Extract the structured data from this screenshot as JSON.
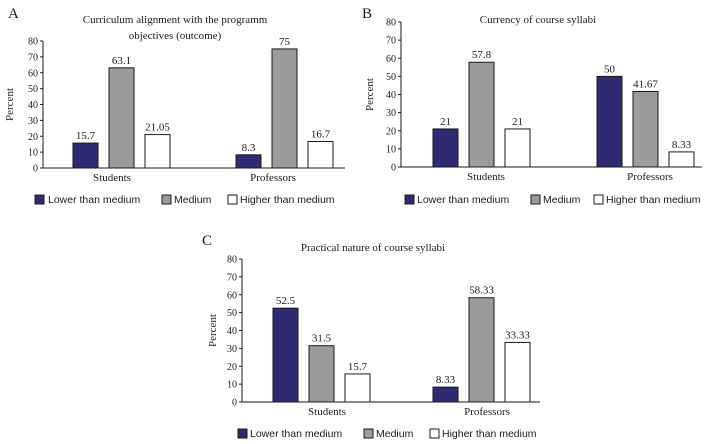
{
  "colors": {
    "lower": "#2e2a74",
    "medium": "#9b9b9b",
    "higher": "#ffffff",
    "axis": "#1a1a1a"
  },
  "chart_data": [
    {
      "panel_label": "A",
      "type": "bar",
      "title_lines": [
        "Curriculum alignment with the programm",
        "objectives (outcome)"
      ],
      "ylabel": "Percent",
      "xlabel": "",
      "ylim": [
        0,
        80
      ],
      "yticks": [
        0,
        10,
        20,
        30,
        40,
        50,
        60,
        70,
        80
      ],
      "categories": [
        "Students",
        "Professors"
      ],
      "series": [
        {
          "name": "Lower than medium",
          "key": "lower",
          "values": [
            15.7,
            8.3
          ],
          "labels": [
            "15.7",
            "8.3"
          ]
        },
        {
          "name": "Medium",
          "key": "medium",
          "values": [
            63.1,
            75
          ],
          "labels": [
            "63.1",
            "75"
          ]
        },
        {
          "name": "Higher than medium",
          "key": "higher",
          "values": [
            21.05,
            16.7
          ],
          "labels": [
            "21.05",
            "16.7"
          ]
        }
      ]
    },
    {
      "panel_label": "B",
      "type": "bar",
      "title_lines": [
        "Currency of course syllabi"
      ],
      "ylabel": "Percent",
      "xlabel": "",
      "ylim": [
        0,
        80
      ],
      "yticks": [
        0,
        10,
        20,
        30,
        40,
        50,
        60,
        70,
        80
      ],
      "categories": [
        "Students",
        "Professors"
      ],
      "series": [
        {
          "name": "Lower than medium",
          "key": "lower",
          "values": [
            21,
            50
          ],
          "labels": [
            "21",
            "50"
          ]
        },
        {
          "name": "Medium",
          "key": "medium",
          "values": [
            57.8,
            41.67
          ],
          "labels": [
            "57.8",
            "41.67"
          ]
        },
        {
          "name": "Higher than medium",
          "key": "higher",
          "values": [
            21,
            8.33
          ],
          "labels": [
            "21",
            "8.33"
          ]
        }
      ]
    },
    {
      "panel_label": "C",
      "type": "bar",
      "title_lines": [
        "Practical nature of course syllabi"
      ],
      "ylabel": "Percent",
      "xlabel": "",
      "ylim": [
        0,
        80
      ],
      "yticks": [
        0,
        10,
        20,
        30,
        40,
        50,
        60,
        70,
        80
      ],
      "categories": [
        "Students",
        "Professors"
      ],
      "series": [
        {
          "name": "Lower than medium",
          "key": "lower",
          "values": [
            52.5,
            8.33
          ],
          "labels": [
            "52.5",
            "8.33"
          ]
        },
        {
          "name": "Medium",
          "key": "medium",
          "values": [
            31.5,
            58.33
          ],
          "labels": [
            "31.5",
            "58.33"
          ]
        },
        {
          "name": "Higher than medium",
          "key": "higher",
          "values": [
            15.7,
            33.33
          ],
          "labels": [
            "15.7",
            "33.33"
          ]
        }
      ]
    }
  ]
}
